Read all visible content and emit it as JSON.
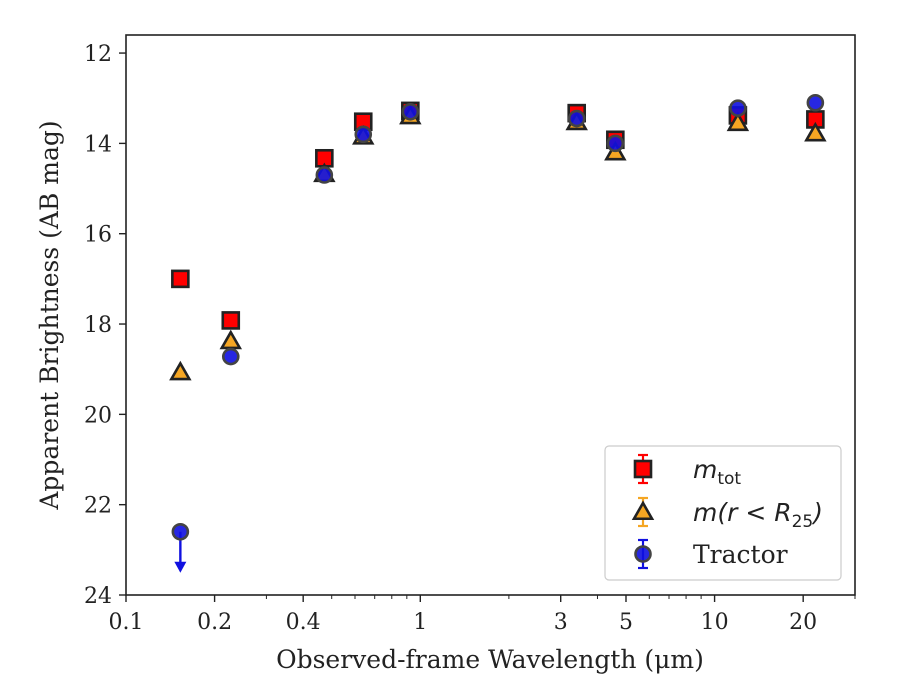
{
  "chart_data": {
    "type": "scatter",
    "xlabel": "Observed-frame Wavelength (μm)",
    "ylabel": "Apparent Brightness (AB mag)",
    "x_scale": "log",
    "xlim": [
      0.1,
      30
    ],
    "ylim": [
      24,
      11.6
    ],
    "y_inverted": true,
    "x_ticks": [
      0.1,
      0.2,
      0.4,
      1,
      3,
      5,
      10,
      20
    ],
    "x_tick_labels": [
      "0.1",
      "0.2",
      "0.4",
      "1",
      "3",
      "5",
      "10",
      "20"
    ],
    "y_ticks": [
      12,
      14,
      16,
      18,
      20,
      22,
      24
    ],
    "y_tick_labels": [
      "12",
      "14",
      "16",
      "18",
      "20",
      "22",
      "24"
    ],
    "legend_position": "lower right",
    "series": [
      {
        "name": "m_tot",
        "legend": {
          "main": "m",
          "sub": "tot"
        },
        "marker": "square",
        "color": "#ff0000",
        "edge_color": "#222222",
        "points": [
          {
            "x": 0.153,
            "y": 17.0
          },
          {
            "x": 0.227,
            "y": 17.92
          },
          {
            "x": 0.472,
            "y": 14.33
          },
          {
            "x": 0.64,
            "y": 13.52
          },
          {
            "x": 0.925,
            "y": 13.28
          },
          {
            "x": 3.4,
            "y": 13.33
          },
          {
            "x": 4.6,
            "y": 13.92
          },
          {
            "x": 12.0,
            "y": 13.38
          },
          {
            "x": 22.0,
            "y": 13.47
          }
        ]
      },
      {
        "name": "m(r < R25)",
        "legend": {
          "main": "m(r < R",
          "sub": "25",
          "tail": ")"
        },
        "marker": "triangle",
        "color": "#f5a623",
        "edge_color": "#222222",
        "points": [
          {
            "x": 0.153,
            "y": 19.07
          },
          {
            "x": 0.227,
            "y": 18.38
          },
          {
            "x": 0.472,
            "y": 14.68
          },
          {
            "x": 0.64,
            "y": 13.85
          },
          {
            "x": 0.925,
            "y": 13.4
          },
          {
            "x": 3.4,
            "y": 13.53
          },
          {
            "x": 4.6,
            "y": 14.2
          },
          {
            "x": 12.0,
            "y": 13.55
          },
          {
            "x": 22.0,
            "y": 13.78
          }
        ]
      },
      {
        "name": "Tractor",
        "legend": {
          "main": "Tractor"
        },
        "marker": "circle",
        "color": "#1010e0",
        "edge_color": "#444444",
        "points": [
          {
            "x": 0.153,
            "y": 22.6,
            "upper_limit": true
          },
          {
            "x": 0.227,
            "y": 18.72
          },
          {
            "x": 0.472,
            "y": 14.7
          },
          {
            "x": 0.64,
            "y": 13.8
          },
          {
            "x": 0.925,
            "y": 13.3
          },
          {
            "x": 3.4,
            "y": 13.45
          },
          {
            "x": 4.6,
            "y": 14.0
          },
          {
            "x": 12.0,
            "y": 13.22
          },
          {
            "x": 22.0,
            "y": 13.1
          }
        ]
      }
    ]
  }
}
